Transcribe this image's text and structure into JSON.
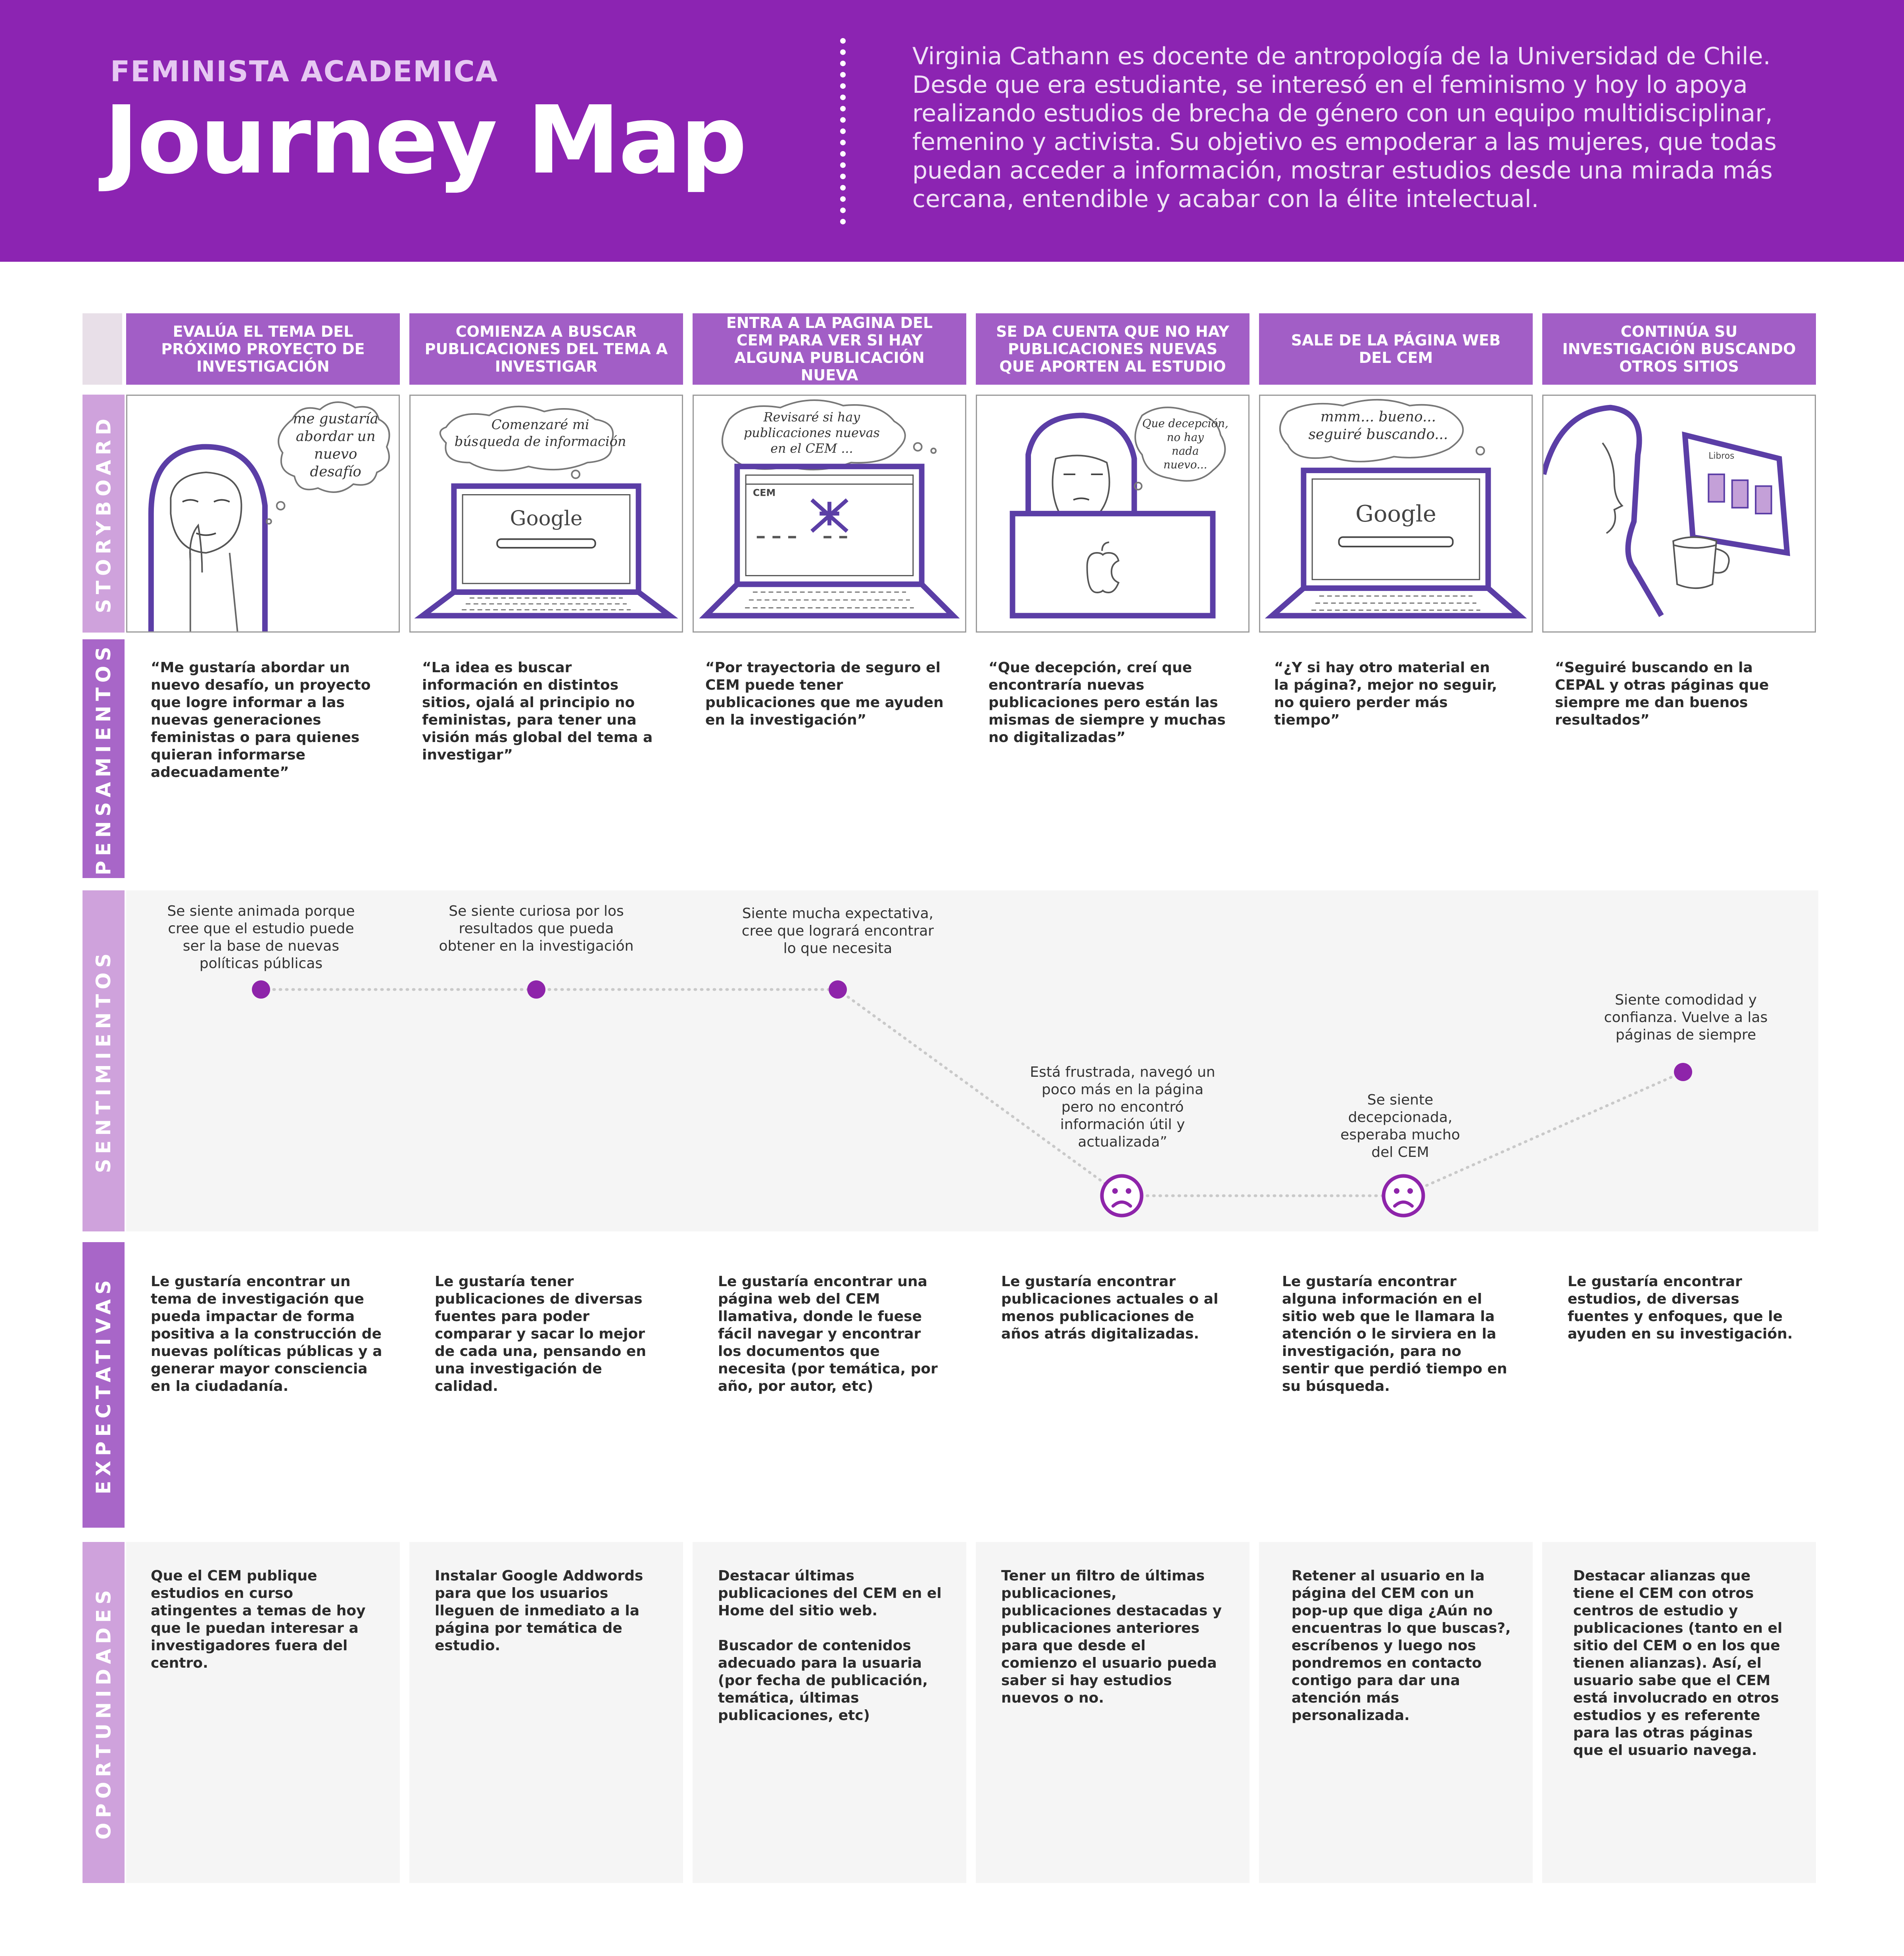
{
  "header": {
    "kicker": "FEMINISTA ACADEMICA",
    "title": "Journey Map",
    "intro": "Virginia Cathann es docente de antropología de la Universidad de Chile. Desde que era estudiante, se interesó en el feminismo y hoy lo apoya realizando estudios de brecha de género con un equipo multidisciplinar, femenino y activista. Su objetivo es empoderar a las mujeres, que todas puedan acceder a información, mostrar estudios desde una mirada más cercana, entendible y acabar con la élite intelectual."
  },
  "colors": {
    "header": "#8c24b2",
    "stage": "#a25ec6",
    "tab_dark": "#a866c8",
    "tab_light": "#cfa2dc",
    "dot": "#8e24aa",
    "band": "#f5f5f5"
  },
  "rows": {
    "storyboard": "STORYBOARD",
    "pensamientos": "PENSAMIENTOS",
    "sentimientos": "SENTIMIENTOS",
    "expectativas": "EXPECTATIVAS",
    "oportunidades": "OPORTUNIDADES"
  },
  "stages": [
    {
      "title": "EVALÚA EL TEMA DEL PRÓXIMO PROYECTO DE INVESTIGACIÓN",
      "bubble": [
        "me gustaría",
        "abordar un",
        "nuevo",
        "desafío"
      ],
      "thought": "“Me gustaría abordar un nuevo desafío, un proyecto que logre informar a las nuevas generaciones feministas o para quienes quieran informarse adecuadamente”",
      "feeling": "Se siente animada porque cree que el estudio puede ser la base de nuevas políticas públicas",
      "expectation": "Le gustaría encontrar un tema de investigación que pueda impactar de forma positiva a la construcción de nuevas políticas públicas y a generar mayor consciencia en la ciudadanía.",
      "opportunity": "Que el CEM publique estudios en curso atingentes a temas de hoy que le puedan interesar a investigadores fuera del centro."
    },
    {
      "title": "COMIENZA A BUSCAR PUBLICACIONES DEL TEMA A INVESTIGAR",
      "bubble": [
        "Comenzaré mi",
        "búsqueda de información"
      ],
      "screen": "Google",
      "thought": "“La idea es buscar información en distintos sitios, ojalá al principio no feministas, para tener una visión más global del tema a investigar”",
      "feeling": "Se siente curiosa por los resultados que pueda obtener en la investigación",
      "expectation": "Le gustaría tener publicaciones de diversas fuentes para poder comparar y sacar lo mejor de cada una, pensando en una investigación de calidad.",
      "opportunity": "Instalar Google Addwords para que los usuarios lleguen de inmediato a la página por temática de estudio."
    },
    {
      "title": "ENTRA A LA PAGINA DEL CEM PARA VER SI HAY ALGUNA PUBLICACIÓN NUEVA",
      "bubble": [
        "Revisaré si hay",
        "publicaciones nuevas",
        "en el CEM ..."
      ],
      "screen": "CEM",
      "thought": "“Por trayectoria de seguro el CEM puede tener publicaciones que me ayuden en la investigación”",
      "feeling": "Siente mucha expectativa, cree que logrará encontrar lo que necesita",
      "expectation": "Le gustaría encontrar una página web del CEM llamativa, donde le fuese fácil navegar y encontrar los documentos que necesita (por temática, por año, por autor, etc)",
      "opportunity": "Destacar últimas publicaciones del CEM en el Home del sitio web.\n\nBuscador de contenidos adecuado para la usuaria (por fecha de publicación, temática, últimas publicaciones, etc)"
    },
    {
      "title": "SE DA CUENTA QUE NO HAY PUBLICACIONES NUEVAS QUE APORTEN AL ESTUDIO",
      "bubble": [
        "Que decepción,",
        "no hay",
        "nada",
        "nuevo..."
      ],
      "thought": "“Que decepción, creí que encontraría nuevas publicaciones pero están las mismas de siempre y muchas no digitalizadas”",
      "feeling": "Está frustrada, navegó un poco más en la página pero no encontró información útil y actualizada”",
      "expectation": "Le gustaría encontrar publicaciones actuales o al menos publicaciones de años atrás digitalizadas.",
      "opportunity": "Tener un filtro de últimas publicaciones, publicaciones destacadas y publicaciones anteriores para que desde el comienzo el usuario pueda saber si hay estudios nuevos o no."
    },
    {
      "title": "SALE DE LA PÁGINA WEB DEL CEM",
      "bubble": [
        "mmm... bueno...",
        "seguiré buscando..."
      ],
      "screen": "Google",
      "thought": "“¿Y si hay otro material en la página?, mejor no seguir, no quiero perder más tiempo”",
      "feeling": "Se siente decepcionada, esperaba mucho del CEM",
      "expectation": "Le gustaría encontrar alguna información en el sitio web que le llamara la atención o le sirviera en la investigación, para no sentir que perdió tiempo en su búsqueda.",
      "opportunity": "Retener al usuario en la página del CEM con un pop-up que diga ¿Aún no encuentras lo que buscas?, escríbenos y luego nos pondremos en contacto contigo para dar una atención más personalizada."
    },
    {
      "title": "CONTINÚA SU INVESTIGACIÓN BUSCANDO OTROS SITIOS",
      "screen": "Libros",
      "thought": "“Seguiré buscando en la CEPAL y otras páginas que siempre me dan buenos resultados”",
      "feeling": "Siente comodidad y confianza. Vuelve a las páginas de siempre",
      "expectation": "Le gustaría encontrar estudios, de diversas fuentes y enfoques,  que le ayuden en su investigación.",
      "opportunity": "Destacar alianzas que tiene el CEM con otros centros de estudio y publicaciones (tanto en el sitio del CEM o en los que tienen alianzas). Así, el usuario sabe que el CEM está involucrado en otros estudios y es referente para las otras páginas que el usuario navega."
    }
  ],
  "chart_data": {
    "type": "line",
    "categories": [
      "1",
      "2",
      "3",
      "4",
      "5",
      "6"
    ],
    "series": [
      {
        "values": [
          4,
          4,
          4,
          1,
          1,
          2.8
        ]
      }
    ],
    "markers": [
      "dot",
      "dot",
      "dot",
      "sad-face",
      "sad-face",
      "dot"
    ],
    "ylim": [
      0,
      5
    ],
    "grid": false
  }
}
